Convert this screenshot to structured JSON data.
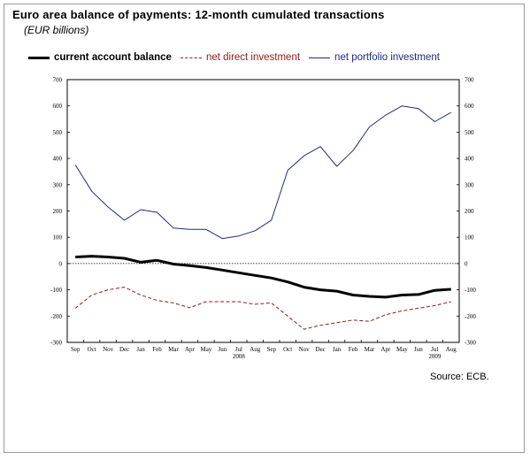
{
  "title": "Euro area balance of payments: 12-month cumulated transactions",
  "subtitle": "(EUR billions)",
  "source": "Source: ECB.",
  "legend": [
    {
      "label": "current account balance",
      "style": "solid-thick",
      "color": "#000000"
    },
    {
      "label": "net direct investment",
      "style": "dashed",
      "color": "#8b1a1a"
    },
    {
      "label": "net portfolio investment",
      "style": "solid-thin",
      "color": "#1f2a7c"
    }
  ],
  "chart_data": {
    "type": "line",
    "categories": [
      "Sep",
      "Oct",
      "Nov",
      "Dec",
      "Jan",
      "Feb",
      "Mar",
      "Apr",
      "May",
      "Jun",
      "Jul",
      "Aug",
      "Sep",
      "Oct",
      "Nov",
      "Dec",
      "Jan",
      "Feb",
      "Mar",
      "Apr",
      "May",
      "Jun",
      "Jul",
      "Aug"
    ],
    "year_labels": [
      {
        "label": "2008",
        "index": 10.5
      },
      {
        "label": "2009",
        "index": 22.5
      }
    ],
    "ylim": [
      -300,
      700
    ],
    "yticks": [
      -300,
      -200,
      -100,
      0,
      100,
      200,
      300,
      400,
      500,
      600,
      700
    ],
    "zero_line": "dotted",
    "series": [
      {
        "name": "current account balance",
        "color": "#000000",
        "values": [
          25,
          28,
          25,
          20,
          5,
          12,
          -2,
          -8,
          -15,
          -25,
          -35,
          -45,
          -55,
          -70,
          -90,
          -100,
          -105,
          -120,
          -125,
          -128,
          -120,
          -118,
          -102,
          -98
        ]
      },
      {
        "name": "net direct investment",
        "color": "#8b1a1a",
        "values": [
          -170,
          -120,
          -100,
          -90,
          -120,
          -140,
          -150,
          -168,
          -145,
          -145,
          -145,
          -155,
          -150,
          -200,
          -250,
          -235,
          -225,
          -215,
          -220,
          -195,
          -180,
          -170,
          -160,
          -145
        ]
      },
      {
        "name": "net portfolio investment",
        "color": "#1f2a7c",
        "values": [
          375,
          275,
          215,
          165,
          205,
          195,
          135,
          130,
          130,
          95,
          105,
          125,
          165,
          355,
          410,
          445,
          370,
          430,
          520,
          565,
          600,
          590,
          540,
          575
        ]
      }
    ]
  }
}
